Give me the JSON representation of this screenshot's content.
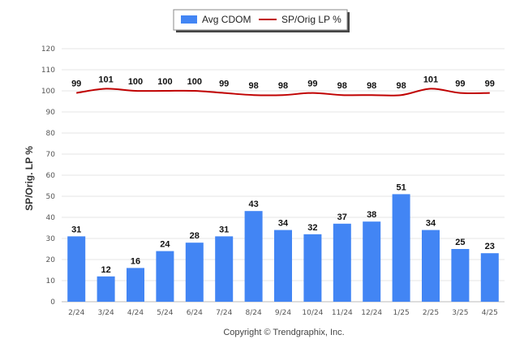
{
  "chart_data": {
    "type": "bar",
    "categories": [
      "2/24",
      "3/24",
      "4/24",
      "5/24",
      "6/24",
      "7/24",
      "8/24",
      "9/24",
      "10/24",
      "11/24",
      "12/24",
      "1/25",
      "2/25",
      "3/25",
      "4/25"
    ],
    "series": [
      {
        "name": "Avg CDOM",
        "type": "bar",
        "color": "#4285f4",
        "values": [
          31,
          12,
          16,
          24,
          28,
          31,
          43,
          34,
          32,
          37,
          38,
          51,
          34,
          25,
          23
        ]
      },
      {
        "name": "SP/Orig LP %",
        "type": "line",
        "color": "#c00000",
        "values": [
          99,
          101,
          100,
          100,
          100,
          99,
          98,
          98,
          99,
          98,
          98,
          98,
          101,
          99,
          99
        ]
      }
    ],
    "xlabel": "",
    "ylabel": "SP/Orig. LP %",
    "ylim": [
      0,
      120
    ],
    "yticks": [
      0,
      10,
      20,
      30,
      40,
      50,
      60,
      70,
      80,
      90,
      100,
      110,
      120
    ],
    "grid": true,
    "legend_position": "top-center",
    "footer": "Copyright © Trendgraphix, Inc."
  }
}
